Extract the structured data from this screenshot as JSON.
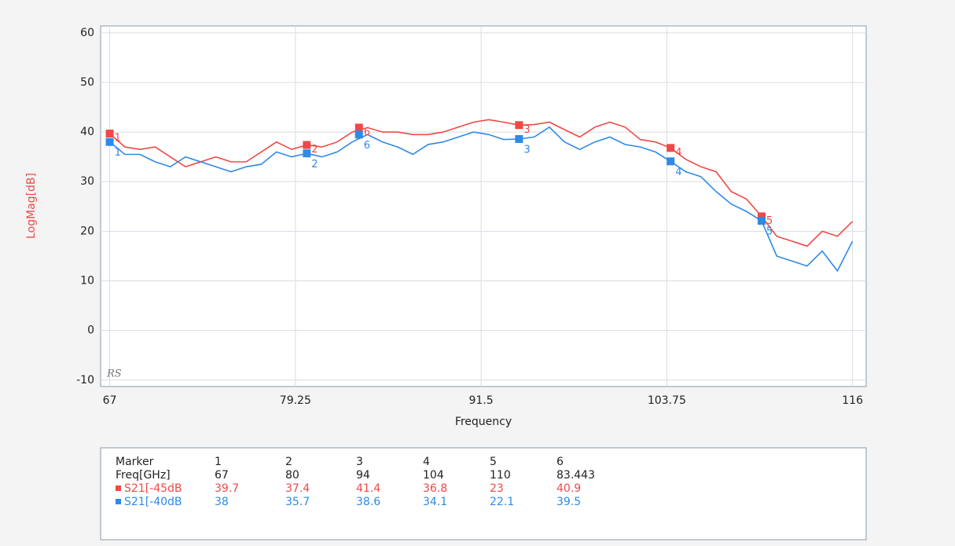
{
  "chart_data": {
    "type": "line",
    "x_label": "Frequency",
    "y_label": "LogMag[dB]",
    "watermark": "RS",
    "xlim": [
      66.4,
      116.9
    ],
    "xticks": [
      67,
      79.25,
      91.5,
      103.75,
      116
    ],
    "ylim": [
      -11.3,
      61.4
    ],
    "yticks": [
      -10,
      0,
      10,
      20,
      30,
      40,
      50,
      60
    ],
    "grid": true,
    "x": [
      67,
      68,
      69,
      70,
      71,
      72,
      73,
      74,
      75,
      76,
      77,
      78,
      79,
      80,
      81,
      82,
      83,
      84,
      85,
      86,
      87,
      88,
      89,
      90,
      91,
      92,
      93,
      94,
      95,
      96,
      97,
      98,
      99,
      100,
      101,
      102,
      103,
      104,
      105,
      106,
      107,
      108,
      109,
      110,
      111,
      112,
      113,
      114,
      115,
      116
    ],
    "series": [
      {
        "name": "S21[-45dB",
        "color": "#f04848",
        "values": [
          39.7,
          37,
          36.5,
          37,
          35,
          33,
          34,
          35,
          34,
          34,
          36,
          38,
          36.5,
          37.4,
          37,
          38,
          40,
          40.9,
          40,
          40,
          39.5,
          39.5,
          40,
          41,
          42,
          42.5,
          42,
          41.4,
          41.5,
          42,
          40.5,
          39,
          41,
          42,
          41,
          38.5,
          38,
          36.8,
          34.5,
          33,
          32,
          28,
          26.5,
          23,
          19,
          18,
          17,
          20,
          19,
          22
        ],
        "marker_values": [
          39.7,
          37.4,
          41.4,
          36.8,
          23,
          40.9
        ]
      },
      {
        "name": "S21[-40dB",
        "color": "#2e8ae6",
        "values": [
          38,
          35.5,
          35.5,
          34,
          33,
          35,
          34,
          33,
          32,
          33,
          33.5,
          36,
          35,
          35.7,
          35,
          36,
          38,
          39.5,
          38,
          37,
          35.5,
          37.5,
          38,
          39,
          40,
          39.5,
          38.5,
          38.6,
          39,
          41,
          38,
          36.5,
          38,
          39,
          37.5,
          37,
          36,
          34.1,
          32,
          31,
          28,
          25.5,
          24,
          22.1,
          15,
          14,
          13,
          16,
          12,
          18
        ],
        "marker_values": [
          38,
          35.7,
          38.6,
          34.1,
          22.1,
          39.5
        ]
      }
    ],
    "marker_table": {
      "marker_label": "Marker",
      "freq_label": "Freq[GHz]",
      "markers": [
        "1",
        "2",
        "3",
        "4",
        "5",
        "6"
      ],
      "freqs": [
        67,
        80,
        94,
        104,
        110,
        83.443
      ]
    }
  }
}
